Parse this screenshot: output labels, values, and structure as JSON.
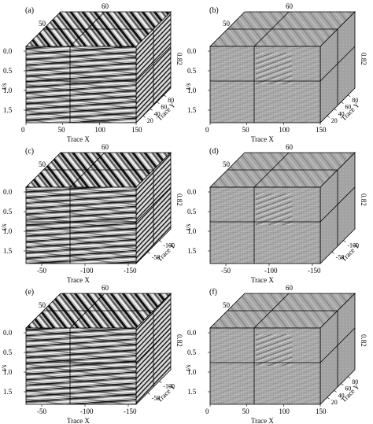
{
  "panels": [
    {
      "label": "(a)",
      "top_tick": "60",
      "top_left_tick": "50",
      "t_ticks": [
        "0.0",
        "0.5",
        "1.0",
        "1.5"
      ],
      "t_label": "t/s",
      "x_ticks": [
        "0",
        "50",
        "100",
        "150"
      ],
      "x_label": "Trace X",
      "y_ticks": [
        "20",
        "40",
        "60",
        "80"
      ],
      "y_label": "Trace Y",
      "right_tick": "0.82",
      "style": "strong"
    },
    {
      "label": "(b)",
      "top_tick": "60",
      "top_left_tick": "50",
      "t_ticks": [
        "0.0",
        "0.5",
        "1.0",
        "1.5"
      ],
      "t_label": "t/s",
      "x_ticks": [
        "0",
        "50",
        "100",
        "150"
      ],
      "x_label": "Trace X",
      "y_ticks": [
        "20",
        "40",
        "60",
        "80"
      ],
      "y_label": "Trace Y",
      "right_tick": "0.82",
      "style": "residual"
    },
    {
      "label": "(c)",
      "top_tick": "60",
      "top_left_tick": "50",
      "t_ticks": [
        "0.0",
        "0.5",
        "1.0",
        "1.5"
      ],
      "t_label": "t/s",
      "x_ticks": [
        "-50",
        "-100",
        "-150"
      ],
      "x_label": "Trace X",
      "y_ticks": [
        "-50",
        "-100"
      ],
      "y_label": "Trace Y",
      "right_tick": "0.82",
      "style": "strong"
    },
    {
      "label": "(d)",
      "top_tick": "60",
      "top_left_tick": "50",
      "t_ticks": [
        "0.0",
        "0.5",
        "1.0",
        "1.5"
      ],
      "t_label": "t/s",
      "x_ticks": [
        "-50",
        "-100",
        "-150"
      ],
      "x_label": "Trace X",
      "y_ticks": [
        "-50",
        "-100"
      ],
      "y_label": "Trace Y",
      "right_tick": "0.82",
      "style": "residual"
    },
    {
      "label": "(e)",
      "top_tick": "60",
      "top_left_tick": "50",
      "t_ticks": [
        "0.0",
        "0.5",
        "1.0",
        "1.5"
      ],
      "t_label": "t/s",
      "x_ticks": [
        "-50",
        "-100",
        "-150"
      ],
      "x_label": "Trace X",
      "y_ticks": [
        "-50",
        "-100"
      ],
      "y_label": "Trace Y",
      "right_tick": "0.82",
      "style": "strong"
    },
    {
      "label": "(f)",
      "top_tick": "60",
      "top_left_tick": "50",
      "t_ticks": [
        "0.0",
        "0.5",
        "1.0",
        "1.5"
      ],
      "t_label": "t/s",
      "x_ticks": [
        "0",
        "50",
        "100",
        "150"
      ],
      "x_label": "Trace X",
      "y_ticks": [
        "20",
        "40",
        "60",
        "80"
      ],
      "y_label": "Trace Y",
      "right_tick": "0.82",
      "style": "residual"
    }
  ]
}
